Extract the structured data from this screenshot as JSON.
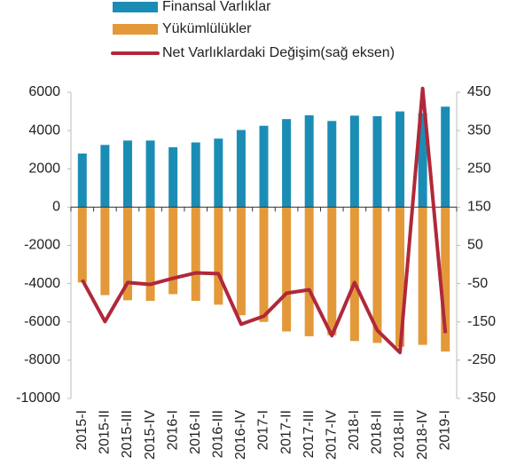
{
  "chart_data": {
    "type": "bar",
    "categories": [
      "2015-I",
      "2015-II",
      "2015-III",
      "2015-IV",
      "2016-I",
      "2016-II",
      "2016-III",
      "2016-IV",
      "2017-I",
      "2017-II",
      "2017-III",
      "2017-IV",
      "2018-I",
      "2018-II",
      "2018-III",
      "2018-IV",
      "2019-I"
    ],
    "series": [
      {
        "name": "Finansal Varlıklar",
        "color": "#1b8db5",
        "type": "bar",
        "values": [
          2800,
          3250,
          3480,
          3480,
          3130,
          3380,
          3580,
          4030,
          4250,
          4600,
          4800,
          4500,
          4780,
          4750,
          5000,
          4900,
          5250
        ]
      },
      {
        "name": "Yükümlülükler",
        "color": "#e3993a",
        "type": "bar",
        "values": [
          -3940,
          -4600,
          -4870,
          -4900,
          -4550,
          -4900,
          -5100,
          -5650,
          -6000,
          -6500,
          -6750,
          -6700,
          -7000,
          -7100,
          -7300,
          -7200,
          -7550
        ]
      },
      {
        "name": "Net Varlıklardaki Değişim(sağ eksen)",
        "color": "#b0283a",
        "type": "line",
        "axis": "y2",
        "values": [
          -40,
          -149,
          -47,
          -52,
          -36,
          -22,
          -24,
          -156,
          -135,
          -75,
          -66,
          -186,
          -47,
          -172,
          -230,
          460,
          -179
        ]
      }
    ],
    "ylim": [
      -10000,
      6000
    ],
    "yticks": [
      -10000,
      -8000,
      -6000,
      -4000,
      -2000,
      0,
      2000,
      4000,
      6000
    ],
    "y2lim": [
      -350,
      450
    ],
    "y2ticks": [
      -350,
      -250,
      -150,
      -50,
      50,
      150,
      250,
      350,
      450
    ],
    "grid": false,
    "legend": "top"
  }
}
